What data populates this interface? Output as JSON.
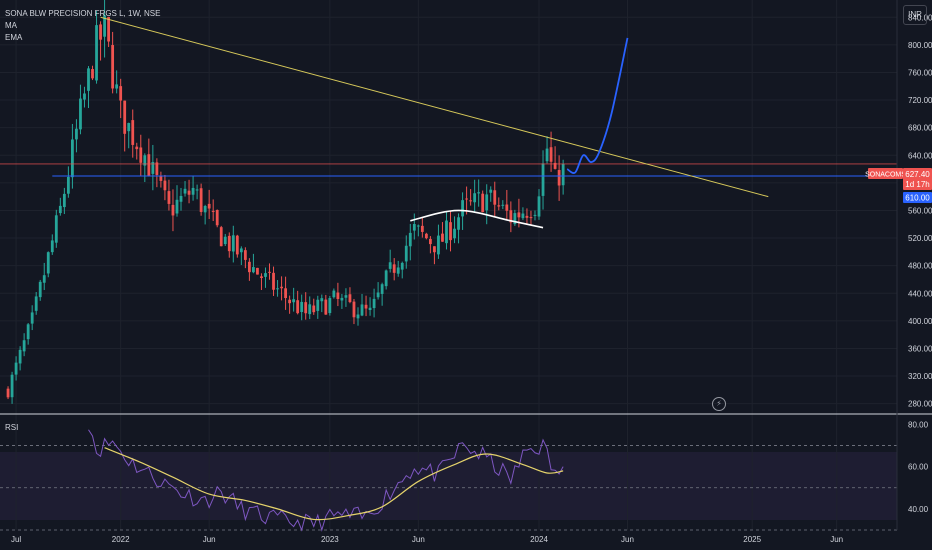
{
  "header": {
    "title": "SONA BLW PRECISION FRGS L, 1W, NSE",
    "indicators": [
      "MA",
      "EMA"
    ],
    "currency": "INR"
  },
  "price_axis": {
    "ticks": [
      "840.00",
      "800.00",
      "760.00",
      "720.00",
      "680.00",
      "640.00",
      "600.00",
      "560.00",
      "520.00",
      "480.00",
      "440.00",
      "400.00",
      "360.00",
      "320.00",
      "280.00"
    ]
  },
  "price_labels": {
    "symbol": "SONACOMS",
    "last_price": "627.40",
    "countdown": "1d 17h",
    "line_price": "610.00"
  },
  "rsi_pane": {
    "label": "RSI",
    "ticks": [
      "80.00",
      "60.00",
      "40.00"
    ]
  },
  "time_axis": {
    "ticks": [
      "Jul",
      "2022",
      "Jun",
      "2023",
      "Jun",
      "2024",
      "Jun",
      "2025",
      "Jun"
    ]
  },
  "colors": {
    "background": "#131722",
    "up": "#26a69a",
    "down": "#ef5350",
    "trendline": "#d6c85a",
    "support_line": "#2962ff",
    "projection": "#2962ff",
    "last_price_line": "#ef5350",
    "rsi": "#7e57c2",
    "rsi_ma": "#e5d36b",
    "rsi_band": "#7e57c2"
  },
  "chart_data": [
    {
      "type": "candlestick",
      "title": "SONA BLW PRECISION FRGS L, 1W, NSE",
      "y_unit": "INR",
      "ylim": [
        265,
        865
      ],
      "x_range": [
        "2021-06-07",
        "2025-09-15"
      ],
      "anchor_prices": [
        {
          "date": "2021-06-21",
          "price": 300
        },
        {
          "date": "2021-08-02",
          "price": 400
        },
        {
          "date": "2021-09-20",
          "price": 560
        },
        {
          "date": "2021-10-25",
          "price": 700
        },
        {
          "date": "2021-11-22",
          "price": 800
        },
        {
          "date": "2021-12-06",
          "price": 820
        },
        {
          "date": "2022-01-03",
          "price": 700
        },
        {
          "date": "2022-02-14",
          "price": 640
        },
        {
          "date": "2022-03-28",
          "price": 560
        },
        {
          "date": "2022-05-09",
          "price": 590
        },
        {
          "date": "2022-06-20",
          "price": 530
        },
        {
          "date": "2022-08-29",
          "price": 470
        },
        {
          "date": "2022-10-10",
          "price": 440
        },
        {
          "date": "2022-11-21",
          "price": 410
        },
        {
          "date": "2023-01-09",
          "price": 430
        },
        {
          "date": "2023-03-13",
          "price": 410
        },
        {
          "date": "2023-04-17",
          "price": 470
        },
        {
          "date": "2023-05-29",
          "price": 530
        },
        {
          "date": "2023-07-10",
          "price": 510
        },
        {
          "date": "2023-08-21",
          "price": 560
        },
        {
          "date": "2023-10-02",
          "price": 580
        },
        {
          "date": "2023-11-13",
          "price": 550
        },
        {
          "date": "2023-12-25",
          "price": 570
        },
        {
          "date": "2024-01-15",
          "price": 650
        },
        {
          "date": "2024-01-29",
          "price": 600
        },
        {
          "date": "2024-02-12",
          "price": 627.4
        }
      ],
      "last_price": 627.4,
      "horizontal_line": {
        "price": 610,
        "from": "2021-09-06"
      },
      "trendline": {
        "from": {
          "date": "2021-11-29",
          "price": 840
        },
        "to": {
          "date": "2025-02-03",
          "price": 580
        }
      },
      "projection_path": [
        {
          "date": "2024-02-19",
          "price": 620
        },
        {
          "date": "2024-03-04",
          "price": 615
        },
        {
          "date": "2024-03-18",
          "price": 640
        },
        {
          "date": "2024-04-01",
          "price": 630
        },
        {
          "date": "2024-04-15",
          "price": 645
        },
        {
          "date": "2024-05-06",
          "price": 700
        },
        {
          "date": "2024-06-03",
          "price": 810
        }
      ],
      "arc_path": [
        {
          "date": "2023-05-22",
          "price": 545
        },
        {
          "date": "2023-08-14",
          "price": 560
        },
        {
          "date": "2023-11-13",
          "price": 545
        },
        {
          "date": "2024-01-08",
          "price": 535
        }
      ]
    },
    {
      "type": "line",
      "title": "RSI",
      "ylim": [
        30,
        84
      ],
      "bands": [
        70,
        50,
        30
      ],
      "series": [
        {
          "points": [
            {
              "date": "2021-11-08",
              "v": 82
            },
            {
              "date": "2021-11-22",
              "v": 68
            },
            {
              "date": "2021-12-20",
              "v": 72
            },
            {
              "date": "2022-01-17",
              "v": 63
            },
            {
              "date": "2022-02-14",
              "v": 58
            },
            {
              "date": "2022-03-21",
              "v": 52
            },
            {
              "date": "2022-04-25",
              "v": 47
            },
            {
              "date": "2022-05-30",
              "v": 44
            },
            {
              "date": "2022-06-27",
              "v": 48
            },
            {
              "date": "2022-08-01",
              "v": 40
            },
            {
              "date": "2022-09-12",
              "v": 36
            },
            {
              "date": "2022-10-24",
              "v": 34
            },
            {
              "date": "2022-12-05",
              "v": 33
            },
            {
              "date": "2023-01-16",
              "v": 37
            },
            {
              "date": "2023-03-06",
              "v": 36
            },
            {
              "date": "2023-04-17",
              "v": 48
            },
            {
              "date": "2023-05-29",
              "v": 60
            },
            {
              "date": "2023-07-10",
              "v": 56
            },
            {
              "date": "2023-08-21",
              "v": 70
            },
            {
              "date": "2023-10-02",
              "v": 64
            },
            {
              "date": "2023-11-13",
              "v": 54
            },
            {
              "date": "2023-12-11",
              "v": 68
            },
            {
              "date": "2024-01-08",
              "v": 70
            },
            {
              "date": "2024-01-29",
              "v": 56
            },
            {
              "date": "2024-02-12",
              "v": 60
            }
          ]
        },
        {
          "points": [
            {
              "date": "2021-12-06",
              "v": 69
            },
            {
              "date": "2022-02-07",
              "v": 62
            },
            {
              "date": "2022-04-04",
              "v": 55
            },
            {
              "date": "2022-06-06",
              "v": 47
            },
            {
              "date": "2022-08-08",
              "v": 44
            },
            {
              "date": "2022-10-03",
              "v": 40
            },
            {
              "date": "2022-12-05",
              "v": 35
            },
            {
              "date": "2023-02-06",
              "v": 37
            },
            {
              "date": "2023-04-03",
              "v": 41
            },
            {
              "date": "2023-06-05",
              "v": 53
            },
            {
              "date": "2023-08-07",
              "v": 61
            },
            {
              "date": "2023-10-02",
              "v": 66
            },
            {
              "date": "2023-12-04",
              "v": 61
            },
            {
              "date": "2024-01-15",
              "v": 57
            },
            {
              "date": "2024-02-12",
              "v": 58
            }
          ]
        }
      ]
    }
  ]
}
